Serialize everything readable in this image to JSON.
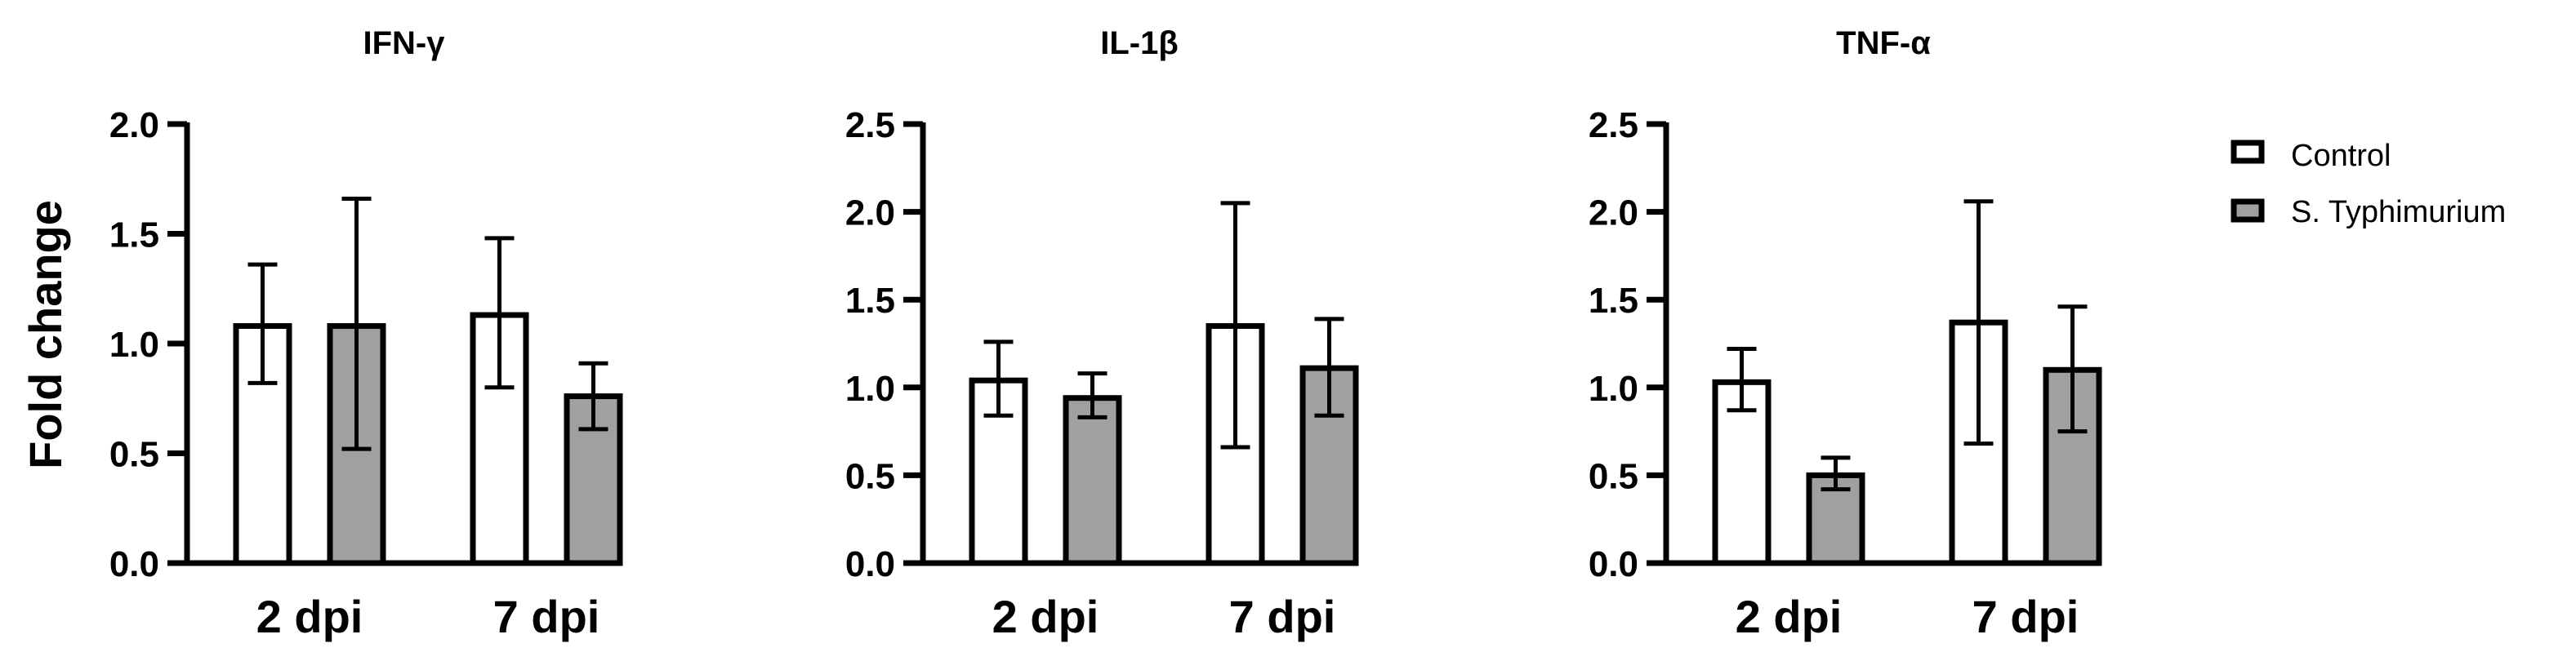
{
  "chart_data": [
    {
      "type": "bar",
      "title": "IFN-γ",
      "ylabel": "Fold change",
      "categories": [
        "2 dpi",
        "7 dpi"
      ],
      "ylim": [
        0,
        2.0
      ],
      "yticks": [
        "0.0",
        "0.5",
        "1.0",
        "1.5",
        "2.0"
      ],
      "series": [
        {
          "name": "Control",
          "values": [
            1.08,
            1.13
          ],
          "error_low": [
            0.82,
            0.8
          ],
          "error_high": [
            1.36,
            1.48
          ]
        },
        {
          "name": "S. Typhimurium",
          "values": [
            1.08,
            0.76
          ],
          "error_low": [
            0.52,
            0.61
          ],
          "error_high": [
            1.66,
            0.91
          ]
        }
      ]
    },
    {
      "type": "bar",
      "title": "IL-1β",
      "ylabel": "",
      "categories": [
        "2 dpi",
        "7 dpi"
      ],
      "ylim": [
        0,
        2.5
      ],
      "yticks": [
        "0.0",
        "0.5",
        "1.0",
        "1.5",
        "2.0",
        "2.5"
      ],
      "series": [
        {
          "name": "Control",
          "values": [
            1.04,
            1.35
          ],
          "error_low": [
            0.84,
            0.66
          ],
          "error_high": [
            1.26,
            2.05
          ]
        },
        {
          "name": "S. Typhimurium",
          "values": [
            0.94,
            1.11
          ],
          "error_low": [
            0.83,
            0.84
          ],
          "error_high": [
            1.08,
            1.39
          ]
        }
      ]
    },
    {
      "type": "bar",
      "title": "TNF-α",
      "ylabel": "",
      "categories": [
        "2 dpi",
        "7 dpi"
      ],
      "ylim": [
        0,
        2.5
      ],
      "yticks": [
        "0.0",
        "0.5",
        "1.0",
        "1.5",
        "2.0",
        "2.5"
      ],
      "series": [
        {
          "name": "Control",
          "values": [
            1.03,
            1.37
          ],
          "error_low": [
            0.87,
            0.68
          ],
          "error_high": [
            1.22,
            2.06
          ]
        },
        {
          "name": "S. Typhimurium",
          "values": [
            0.5,
            1.1
          ],
          "error_low": [
            0.42,
            0.75
          ],
          "error_high": [
            0.6,
            1.46
          ]
        }
      ]
    }
  ],
  "legend": {
    "position": "top-right",
    "items": [
      {
        "label": "Control",
        "color": "#ffffff"
      },
      {
        "label": "S. Typhimurium",
        "color": "#a0a0a0"
      }
    ]
  },
  "colors": {
    "Control": "#ffffff",
    "S. Typhimurium": "#a0a0a0",
    "stroke": "#000000"
  }
}
